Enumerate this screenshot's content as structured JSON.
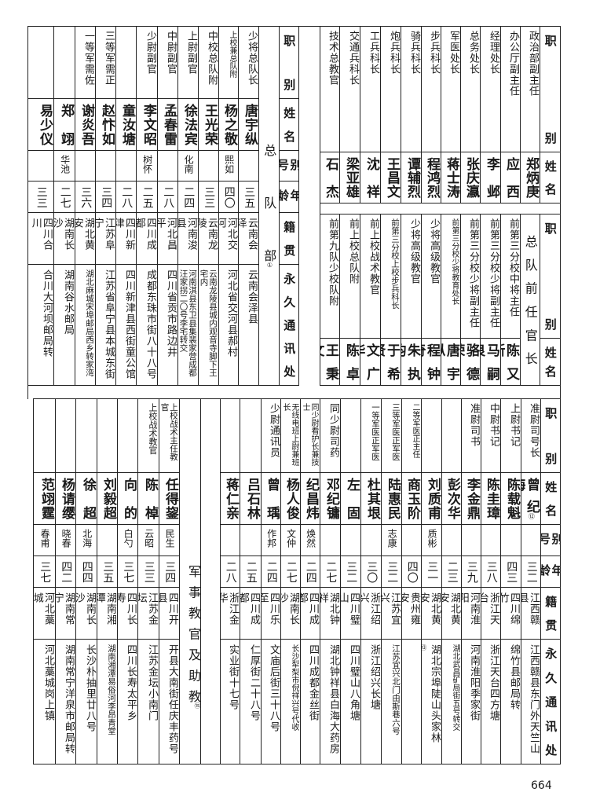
{
  "page_number": "664",
  "top_left": {
    "heading": "总队部",
    "heading_note": "①",
    "headers": [
      "职别",
      "姓名",
      "别号",
      "年龄",
      "籍贯",
      "永久通讯处"
    ],
    "rows": [
      {
        "position": "少将总队长",
        "name": "唐宇纵",
        "alias": "",
        "age": "三五",
        "origin": "云南会泽",
        "address": "云南会泽县"
      },
      {
        "position": "上校兼总队附",
        "name": "杨之敬",
        "alias": "熙如",
        "age": "四〇",
        "origin": "河北交河",
        "address": "河北省交河县郝村"
      },
      {
        "position": "中校总队附",
        "name": "王光荣",
        "alias": "",
        "age": "三三",
        "origin": "云南龙陵",
        "address": "云南龙陵县城内观音寺脚下王宅内"
      },
      {
        "position": "上尉副官",
        "name": "徐法宾",
        "alias": "化南",
        "age": "二四",
        "origin": "河南浚县",
        "address": "河南淇县东卫县集裴家营成都汪家拐二〇号李宅转交"
      },
      {
        "position": "中尉副官",
        "name": "孟春雷",
        "alias": "",
        "age": "二八",
        "origin": "河北昌平",
        "address": "四川省贡市路边井"
      },
      {
        "position": "少尉副官",
        "name": "李文昭",
        "alias": "树怀",
        "age": "二五",
        "origin": "四川成都",
        "address": "成都东珠市街八十八号"
      },
      {
        "position": "",
        "name": "童汝塘",
        "alias": "",
        "age": "二八",
        "origin": "四川新津",
        "address": "四川新津县西街童公馆"
      },
      {
        "position": "三等军需正",
        "name": "赵忭如",
        "alias": "",
        "age": "三四",
        "origin": "江苏阜宁",
        "address": "江苏省阜宁县本城东街"
      },
      {
        "position": "一等军需佐",
        "name": "谢炎吾",
        "alias": "",
        "age": "三六",
        "origin": "湖北黄安",
        "address": "湖北麻城宋埠邮局西乡转家湾"
      },
      {
        "position": "",
        "name": "郑翊",
        "alias": "华池",
        "age": "二七",
        "origin": "湖南长沙",
        "address": "湖南谷水邮局"
      },
      {
        "position": "",
        "name": "易少仪",
        "alias": "",
        "age": "三三",
        "origin": "四川合川",
        "address": "合川大河坝邮局转"
      }
    ]
  },
  "top_right": {
    "headers": [
      "职别",
      "姓名"
    ],
    "rows": [
      {
        "position": "政治部副主任",
        "name": "郑炳庚"
      },
      {
        "position": "办公厅副主任",
        "name": "应西"
      },
      {
        "position": "经理处长",
        "name": "李邺"
      },
      {
        "position": "总务处长",
        "name": "张庆瀛"
      },
      {
        "position": "军医处长",
        "name": "蒋士涛"
      },
      {
        "position": "步兵科长",
        "name": "程鸿烈"
      },
      {
        "position": "骑兵科长",
        "name": "谭辅烈"
      },
      {
        "position": "炮兵科长",
        "name": "王昌文"
      },
      {
        "position": "工兵科长",
        "name": "沈祥"
      },
      {
        "position": "交通兵科长",
        "name": "梁亚雄"
      },
      {
        "position": "技术总教官",
        "name": "石杰"
      }
    ]
  },
  "former_officers": {
    "heading": "总队前任官长",
    "headers": [
      "职别",
      "姓名"
    ],
    "rows": [
      {
        "position": "前第三分校中将主任",
        "name": "陈又新"
      },
      {
        "position": "前第三分校少将副主任",
        "name": "马嗣良"
      },
      {
        "position": "前第三分校少将副主任",
        "name": "骆德荣"
      },
      {
        "position": "前第三分校少将教育处长",
        "name": "唐宇纵"
      },
      {
        "position": "少将高级教官",
        "name": "程钟奇"
      },
      {
        "position": "少将高级教官",
        "name": "朱执钧"
      },
      {
        "position": "前第三分校上校步兵科长",
        "name": "于希贤"
      },
      {
        "position": "前上校战术教官",
        "name": "文广华"
      },
      {
        "position": "前上校总队附",
        "name": "陈卓"
      },
      {
        "position": "前第九队少校队附",
        "name": "王秉文"
      }
    ]
  },
  "bottom_right": {
    "headers": [
      "职别",
      "姓名",
      "别号",
      "年龄",
      "籍贯",
      "永久通讯处"
    ],
    "rows": [
      {
        "position": "准尉司号长",
        "name": "曾纪海",
        "name_note": "⑫",
        "alias": "",
        "age": "三二",
        "origin": "江西赣县",
        "address": "江西赣县东门外天竺山"
      },
      {
        "position": "上尉书记",
        "name": "陈载魁",
        "alias": "",
        "age": "四三",
        "origin": "四川绵竹",
        "address": "绵竹县邮局转"
      },
      {
        "position": "中尉书记",
        "name": "陈圭璋",
        "alias": "",
        "age": "三八",
        "origin": "浙江天台",
        "address": "浙江天台四方塘"
      },
      {
        "position": "准尉司书",
        "name": "李金鼎",
        "alias": "",
        "age": "三九",
        "origin": "河南淮阳",
        "address": "河南淮阳季家街"
      },
      {
        "position": "",
        "name": "彭次华",
        "alias": "",
        "age": "二三",
        "origin": "湖北黄安",
        "address": "湖北武昌矿局街五号转交"
      },
      {
        "position": "",
        "name": "刘质甫",
        "alias": "质彬",
        "age": "三一",
        "origin": "湖北黄安",
        "address": "湖北宗埠陡山头家林",
        "address_note": "⑬"
      },
      {
        "position": "二等军医正主任",
        "name": "商玉阶",
        "alias": "",
        "age": "四〇",
        "origin": "贵州雍安",
        "origin_note": "⑭",
        "address": ""
      },
      {
        "position": "三等军医正军医",
        "name": "陆惠民",
        "alias": "志康",
        "age": "三二",
        "origin": "江苏宜兴",
        "address": "江苏宜兴北门由斯巷六号"
      },
      {
        "position": "一等军医正军医",
        "name": "杜其垠",
        "alias": "",
        "age": "三〇",
        "origin": "浙江绍兴",
        "address": "浙江绍兴长塘"
      },
      {
        "position": "",
        "name": "左固",
        "alias": "",
        "age": "三二",
        "origin": "四川璧山",
        "address": "四川璧山八角塘"
      },
      {
        "position": "同少尉司药",
        "name": "邓纪镛",
        "alias": "",
        "age": "二七",
        "origin": "湖北钟祥",
        "address": "湖北钟祥县白海大药房"
      },
      {
        "position": "同少尉看护长兼技士",
        "name": "纪昌炜",
        "alias": "焕然",
        "age": "二四",
        "origin": "四川成都",
        "address": "四川成都金丝街"
      },
      {
        "position": "无线电班上尉兼班长",
        "name": "杨人俊",
        "alias": "文仲",
        "age": "二七",
        "origin": "湖南长沙",
        "address": "长沙犁梨市倪祥兴号代收"
      },
      {
        "position": "少尉通讯员",
        "name": "曾瑀",
        "alias": "作邦",
        "age": "二四",
        "origin": "四川乐至",
        "address": "文庙后街三十八号"
      },
      {
        "position": "",
        "name": "吕石林",
        "alias": "",
        "age": "二五",
        "origin": "四川成都",
        "address": "仁厚街二十八号"
      },
      {
        "position": "",
        "name": "蒋仁亲",
        "alias": "",
        "age": "二八",
        "origin": "浙江金华",
        "address": "实业街十七号"
      }
    ]
  },
  "instructors": {
    "heading": "军事教官及助教",
    "heading_note": "⑮",
    "rows": [
      {
        "position": "上校战术主任教官",
        "name": "任得鋆",
        "alias": "民生",
        "age": "三四",
        "origin": "四川开县",
        "address": "开县大南街任庆丰药号"
      },
      {
        "position": "上校战术教官",
        "name": "陈棹",
        "alias": "云昭",
        "age": "三三",
        "origin": "江苏金坛",
        "address": "江苏金坛小南门"
      },
      {
        "position": "",
        "name": "向的",
        "alias": "白勺",
        "age": "三七",
        "origin": "四川长寿",
        "address": "四川长寿太平乡"
      },
      {
        "position": "",
        "name": "刘毅超",
        "alias": "",
        "age": "三五",
        "origin": "湖南湘潭",
        "address": "湖南湘潭易俗河李昂青堂"
      },
      {
        "position": "",
        "name": "徐超",
        "alias": "北海",
        "age": "四四",
        "origin": "湖南长沙",
        "address": "长沙朴抽里廿八号"
      },
      {
        "position": "",
        "name": "杨请缨",
        "alias": "晓春",
        "age": "四二",
        "origin": "湖南常宁",
        "address": "湖南常宁洋泉市邮局转"
      },
      {
        "position": "",
        "name": "范翊霆",
        "alias": "春甫",
        "age": "三七",
        "origin": "河北藁城",
        "address": "河北藁城岗上镇"
      }
    ]
  }
}
